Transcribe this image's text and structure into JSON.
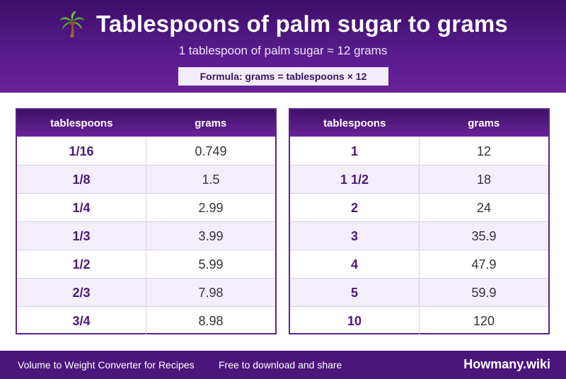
{
  "header": {
    "title": "Tablespoons of palm sugar to grams",
    "subtitle": "1 tablespoon of palm sugar ≈ 12 grams",
    "formula": "Formula: grams = tablespoons × 12",
    "icon": "palm-tree-icon"
  },
  "tables": {
    "left": {
      "col_tbsp": "tablespoons",
      "col_grams": "grams",
      "rows": [
        {
          "tbsp": "1/16",
          "grams": "0.749"
        },
        {
          "tbsp": "1/8",
          "grams": "1.5"
        },
        {
          "tbsp": "1/4",
          "grams": "2.99"
        },
        {
          "tbsp": "1/3",
          "grams": "3.99"
        },
        {
          "tbsp": "1/2",
          "grams": "5.99"
        },
        {
          "tbsp": "2/3",
          "grams": "7.98"
        },
        {
          "tbsp": "3/4",
          "grams": "8.98"
        }
      ]
    },
    "right": {
      "col_tbsp": "tablespoons",
      "col_grams": "grams",
      "rows": [
        {
          "tbsp": "1",
          "grams": "12"
        },
        {
          "tbsp": "1 1/2",
          "grams": "18"
        },
        {
          "tbsp": "2",
          "grams": "24"
        },
        {
          "tbsp": "3",
          "grams": "35.9"
        },
        {
          "tbsp": "4",
          "grams": "47.9"
        },
        {
          "tbsp": "5",
          "grams": "59.9"
        },
        {
          "tbsp": "10",
          "grams": "120"
        }
      ]
    }
  },
  "footer": {
    "left_text": "Volume to Weight Converter for Recipes",
    "mid_text": "Free to download and share",
    "brand": "Howmany.wiki"
  },
  "colors": {
    "header_purple": "#4b167c",
    "accent_text": "#4a1a78",
    "row_alt": "#f4eefa"
  }
}
